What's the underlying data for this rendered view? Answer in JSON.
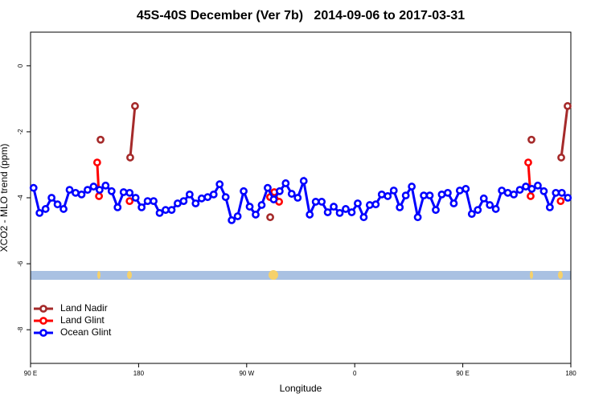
{
  "chart_data": {
    "type": "line",
    "title": "45S-40S December (Ver 7b)   2014-09-06 to 2017-03-31",
    "xlabel": "Longitude",
    "ylabel": "XCO2 - MLO trend (ppm)",
    "xlim": [
      90,
      540
    ],
    "ylim": [
      -9.02,
      1.02
    ],
    "xticks": [
      {
        "value": 90,
        "label": "90 E"
      },
      180,
      {
        "value": 270,
        "label": "90 W"
      },
      {
        "value": 360,
        "label": "0"
      },
      {
        "value": 450,
        "label": "90 E"
      },
      {
        "value": 540,
        "label": "180"
      }
    ],
    "yticks": [
      0,
      -2,
      -4,
      -6,
      -8
    ],
    "legend": "bottom-left",
    "series": [
      {
        "name": "Land Nadir",
        "color": "#a52a2a",
        "x": [
          148.3,
          null,
          173,
          177,
          null,
          289.6,
          null,
          507.2,
          null,
          532,
          537.3
        ],
        "values": [
          -2.24,
          null,
          -2.78,
          -1.22,
          null,
          -4.59,
          null,
          -2.24,
          null,
          -2.78,
          -1.22
        ]
      },
      {
        "name": "Land Glint",
        "color": "#ff0000",
        "x": [
          145.5,
          147,
          null,
          172.5,
          null,
          289.5,
          293,
          297,
          null,
          504.5,
          506.5,
          null,
          531.5
        ],
        "values": [
          -2.93,
          -3.95,
          null,
          -4.1,
          null,
          -3.98,
          -3.83,
          -4.12,
          null,
          -2.93,
          -3.95,
          null,
          -4.1
        ]
      },
      {
        "name": "Ocean Glint",
        "color": "#0000ff",
        "x": [
          92.5,
          97.5,
          102.5,
          107.5,
          112.5,
          117.5,
          122.5,
          127.5,
          132.5,
          137.5,
          142.5,
          147.5,
          152.5,
          157.5,
          162.5,
          167.5,
          172.5,
          177.5,
          182.5,
          187.5,
          192.5,
          197.5,
          202.5,
          207.5,
          212.5,
          217.5,
          222.5,
          227.5,
          232.5,
          237.5,
          242.5,
          247.5,
          252.5,
          257.5,
          262.5,
          267.5,
          272.5,
          277.5,
          282.5,
          287.5,
          292.5,
          297.5,
          302.5,
          307.5,
          312.5,
          317.5,
          322.5,
          327.5,
          332.5,
          337.5,
          342.5,
          347.5,
          352.5,
          357.5,
          362.5,
          367.5,
          372.5,
          377.5,
          382.5,
          387.5,
          392.5,
          397.5,
          402.5,
          407.5,
          412.5,
          417.5,
          422.5,
          427.5,
          432.5,
          437.5,
          442.5,
          447.5,
          452.5,
          457.5,
          462.5,
          467.5,
          472.5,
          477.5,
          482.5,
          487.5,
          492.5,
          497.5,
          502.5,
          507.5,
          512.5,
          517.5,
          522.5,
          527.5,
          532.5,
          537.5
        ],
        "values": [
          -3.7,
          -4.46,
          -4.34,
          -4.0,
          -4.2,
          -4.34,
          -3.76,
          -3.85,
          -3.9,
          -3.76,
          -3.66,
          -3.76,
          -3.63,
          -3.8,
          -4.29,
          -3.83,
          -3.85,
          -4.0,
          -4.29,
          -4.1,
          -4.1,
          -4.46,
          -4.37,
          -4.37,
          -4.17,
          -4.1,
          -3.9,
          -4.17,
          -4.02,
          -3.98,
          -3.9,
          -3.59,
          -3.98,
          -4.68,
          -4.56,
          -3.8,
          -4.27,
          -4.51,
          -4.22,
          -3.7,
          -4.05,
          -3.8,
          -3.56,
          -3.88,
          -4.0,
          -3.49,
          -4.51,
          -4.12,
          -4.12,
          -4.44,
          -4.27,
          -4.46,
          -4.34,
          -4.44,
          -4.17,
          -4.59,
          -4.22,
          -4.2,
          -3.9,
          -3.95,
          -3.78,
          -4.29,
          -3.93,
          -3.66,
          -4.59,
          -3.93,
          -3.93,
          -4.37,
          -3.9,
          -3.85,
          -4.17,
          -3.78,
          -3.73,
          -4.49,
          -4.37,
          -4.02,
          -4.22,
          -4.34,
          -3.78,
          -3.85,
          -3.9,
          -3.76,
          -3.66,
          -3.73,
          -3.63,
          -3.8,
          -4.29,
          -3.85,
          -3.85,
          -4.0
        ]
      }
    ]
  }
}
